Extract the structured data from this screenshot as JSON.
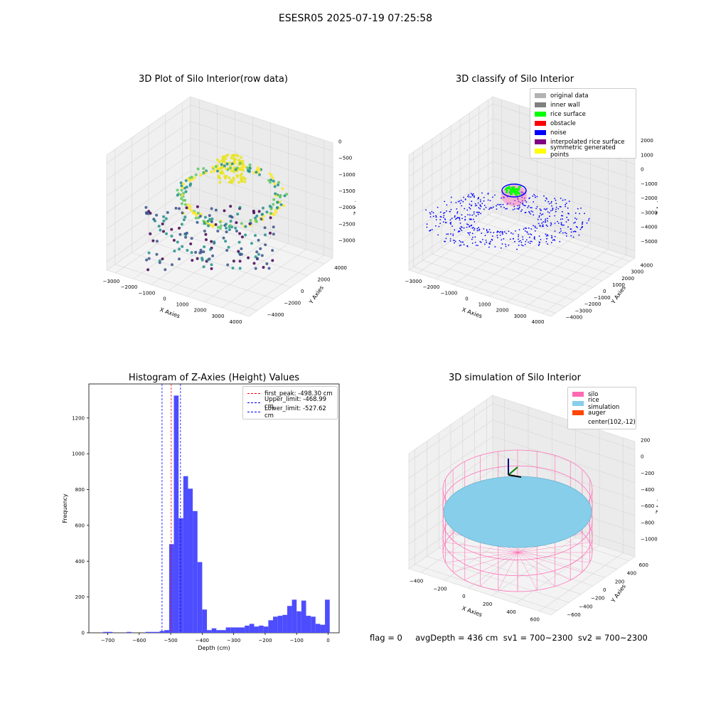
{
  "figure": {
    "suptitle": "ESESR05 2025-07-19 07:25:58",
    "footer": "flag = 0     avgDepth = 436 cm  sv1 = 700~2300  sv2 = 700~2300"
  },
  "raw_plot": {
    "title": "3D Plot of Silo Interior(row data)",
    "xlabel": "X Axies",
    "ylabel": "Y Axies",
    "zlabel": "Z Axies (Depth)",
    "xticks": [
      "−3000",
      "−2000",
      "−1000",
      "0",
      "1000",
      "2000",
      "3000",
      "4000"
    ],
    "yticks": [
      "−4000",
      "−2000",
      "0",
      "2000",
      "4000"
    ],
    "zticks": [
      "0",
      "−500",
      "−1000",
      "−1500",
      "−2000",
      "−2500",
      "−3000"
    ]
  },
  "classify_plot": {
    "title": "3D classify of Silo Interior",
    "xlabel": "X Axies",
    "ylabel": "Y Axies",
    "zlabel": "Z Axies (Depth)",
    "xticks": [
      "−3000",
      "−2000",
      "−1000",
      "0",
      "1000",
      "2000",
      "3000",
      "4000"
    ],
    "yticks": [
      "−4000",
      "−3000",
      "−2000",
      "−1000",
      "0",
      "1000",
      "2000",
      "3000",
      "4000"
    ],
    "zticks": [
      "2000",
      "1000",
      "0",
      "−1000",
      "−2000",
      "−3000",
      "−4000",
      "−5000"
    ],
    "legend": [
      {
        "label": "original data",
        "color": "#b3b3b3"
      },
      {
        "label": "inner wall",
        "color": "#808080"
      },
      {
        "label": "rice surface",
        "color": "#00ff00"
      },
      {
        "label": "obstacle",
        "color": "#ff0000"
      },
      {
        "label": "noise",
        "color": "#0000ff"
      },
      {
        "label": "interpolated rice surface",
        "color": "#800080"
      },
      {
        "label": "symmetric generated points",
        "color": "#ffff00"
      }
    ]
  },
  "sim_plot": {
    "title": "3D simulation of Silo Interior",
    "xlabel": "X Axies",
    "ylabel": "Y Axies",
    "zlabel": "Z Axies (Depth)",
    "xticks": [
      "−400",
      "−200",
      "0",
      "200",
      "400",
      "600"
    ],
    "yticks": [
      "−600",
      "−400",
      "−200",
      "0",
      "200",
      "400",
      "600"
    ],
    "zticks": [
      "200",
      "0",
      "−200",
      "−400",
      "−600",
      "−800",
      "−1000"
    ],
    "legend": [
      {
        "label": "silo",
        "color": "#ff69b4"
      },
      {
        "label": "rice simulation",
        "color": "#87ceeb"
      },
      {
        "label": "auger",
        "color": "#ff4500"
      },
      {
        "label": "center(102,-12)",
        "color": ""
      }
    ]
  },
  "chart_data": [
    {
      "type": "bar",
      "title": "Histogram of Z-Axies (Height) Values",
      "xlabel": "Depth (cm)",
      "ylabel": "Frequency",
      "xlim": [
        -760,
        35
      ],
      "ylim": [
        0,
        1390
      ],
      "xticks": [
        -700,
        -600,
        -500,
        -400,
        -300,
        -200,
        -100,
        0
      ],
      "yticks": [
        0,
        200,
        400,
        600,
        800,
        1000,
        1200
      ],
      "bar_color": "#4d4dff",
      "bins": {
        "edges": [
          -760,
          -745,
          -730,
          -715,
          -700,
          -685,
          -670,
          -655,
          -640,
          -625,
          -610,
          -595,
          -580,
          -565,
          -550,
          -535,
          -520,
          -505,
          -490,
          -475,
          -460,
          -445,
          -430,
          -415,
          -400,
          -385,
          -370,
          -355,
          -340,
          -325,
          -310,
          -295,
          -280,
          -265,
          -250,
          -235,
          -220,
          -205,
          -190,
          -175,
          -160,
          -145,
          -130,
          -115,
          -100,
          -85,
          -70,
          -55,
          -40,
          -25,
          -10,
          5
        ],
        "counts": [
          0,
          0,
          0,
          5,
          5,
          0,
          0,
          0,
          5,
          0,
          0,
          0,
          5,
          5,
          5,
          10,
          15,
          495,
          1325,
          640,
          875,
          805,
          680,
          395,
          130,
          15,
          25,
          15,
          15,
          30,
          30,
          30,
          30,
          40,
          50,
          35,
          40,
          35,
          70,
          90,
          95,
          100,
          150,
          185,
          120,
          180,
          95,
          90,
          50,
          45,
          185
        ]
      },
      "lines": [
        {
          "name": "first_peak: -498.30 cm",
          "x": -498.3,
          "color": "#ff0000"
        },
        {
          "name": "Upper_limit: -468.99 cm",
          "x": -468.99,
          "color": "#0000ff"
        },
        {
          "name": "Lower_limit: -527.62 cm",
          "x": -527.62,
          "color": "#0000ff"
        }
      ]
    }
  ]
}
